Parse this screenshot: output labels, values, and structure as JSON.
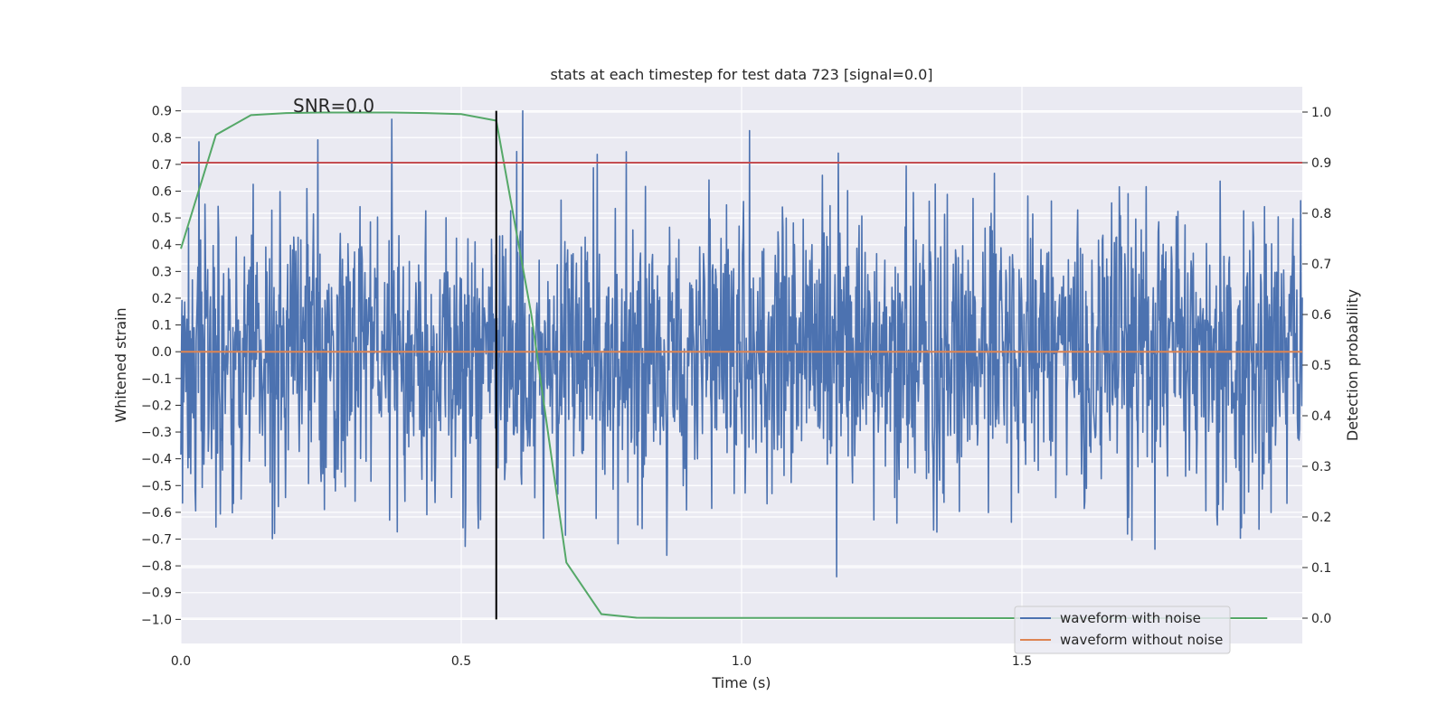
{
  "chart_data": {
    "type": "line",
    "title": "stats at each timestep for test data 723 [signal=0.0]",
    "xlabel": "Time (s)",
    "ylabel": "Whitened strain",
    "y2label": "Detection probability",
    "xlim": [
      0.0,
      2.0
    ],
    "ylim": [
      -1.09,
      0.99
    ],
    "y2lim": [
      -0.05,
      1.05
    ],
    "xticks": [
      0.0,
      0.5,
      1.0,
      1.5
    ],
    "xtick_labels": [
      "0.0",
      "0.5",
      "1.0",
      "1.5"
    ],
    "yticks": [
      -1.0,
      -0.9,
      -0.8,
      -0.7,
      -0.6,
      -0.5,
      -0.4,
      -0.3,
      -0.2,
      -0.1,
      0.0,
      0.1,
      0.2,
      0.3,
      0.4,
      0.5,
      0.6,
      0.7,
      0.8,
      0.9
    ],
    "ytick_labels": [
      "−1.0",
      "−0.9",
      "−0.8",
      "−0.7",
      "−0.6",
      "−0.5",
      "−0.4",
      "−0.3",
      "−0.2",
      "−0.1",
      "0.0",
      "0.1",
      "0.2",
      "0.3",
      "0.4",
      "0.5",
      "0.6",
      "0.7",
      "0.8",
      "0.9"
    ],
    "y2ticks": [
      0.0,
      0.1,
      0.2,
      0.3,
      0.4,
      0.5,
      0.6,
      0.7,
      0.8,
      0.9,
      1.0
    ],
    "y2tick_labels": [
      "0.0",
      "0.1",
      "0.2",
      "0.3",
      "0.4",
      "0.5",
      "0.6",
      "0.7",
      "0.8",
      "0.9",
      "1.0"
    ],
    "annotation": "SNR=0.0",
    "annotation_at": [
      0.2,
      0.92
    ],
    "legend_position": "lower-right",
    "series": [
      {
        "name": "waveform with noise",
        "axis": "left",
        "color": "#4c72b0",
        "style": "noise",
        "t_range": [
          0.0,
          2.0
        ],
        "n_samples": 2048,
        "std": 0.27,
        "range": [
          -1.0,
          0.9
        ],
        "seed": 723
      },
      {
        "name": "waveform without noise",
        "axis": "left",
        "color": "#dd8452",
        "x": [
          0.0,
          2.0
        ],
        "y": [
          0.0,
          0.0
        ]
      },
      {
        "name": "Detection probability",
        "axis": "right",
        "color": "#55a868",
        "x": [
          0.0,
          0.0625,
          0.125,
          0.1875,
          0.25,
          0.3125,
          0.375,
          0.4375,
          0.5,
          0.5625,
          0.625,
          0.6875,
          0.75,
          0.8125,
          0.875,
          0.9375,
          1.0,
          1.5,
          1.9375
        ],
        "y": [
          0.73,
          0.955,
          0.994,
          0.998,
          0.999,
          0.999,
          0.999,
          0.998,
          0.996,
          0.983,
          0.6,
          0.11,
          0.008,
          0.001,
          0.0005,
          0.0005,
          0.0005,
          0.0,
          0.0
        ]
      },
      {
        "name": "threshold",
        "axis": "right",
        "color": "#c44e52",
        "x": [
          0.0,
          2.0
        ],
        "y": [
          0.9,
          0.9
        ]
      },
      {
        "name": "marker",
        "axis": "left",
        "color": "#000000",
        "vline_x": 0.5625,
        "y": [
          -1.0,
          0.9
        ]
      }
    ],
    "legend": [
      {
        "label": "waveform with noise",
        "color": "#4c72b0"
      },
      {
        "label": "waveform without noise",
        "color": "#dd8452"
      }
    ]
  }
}
